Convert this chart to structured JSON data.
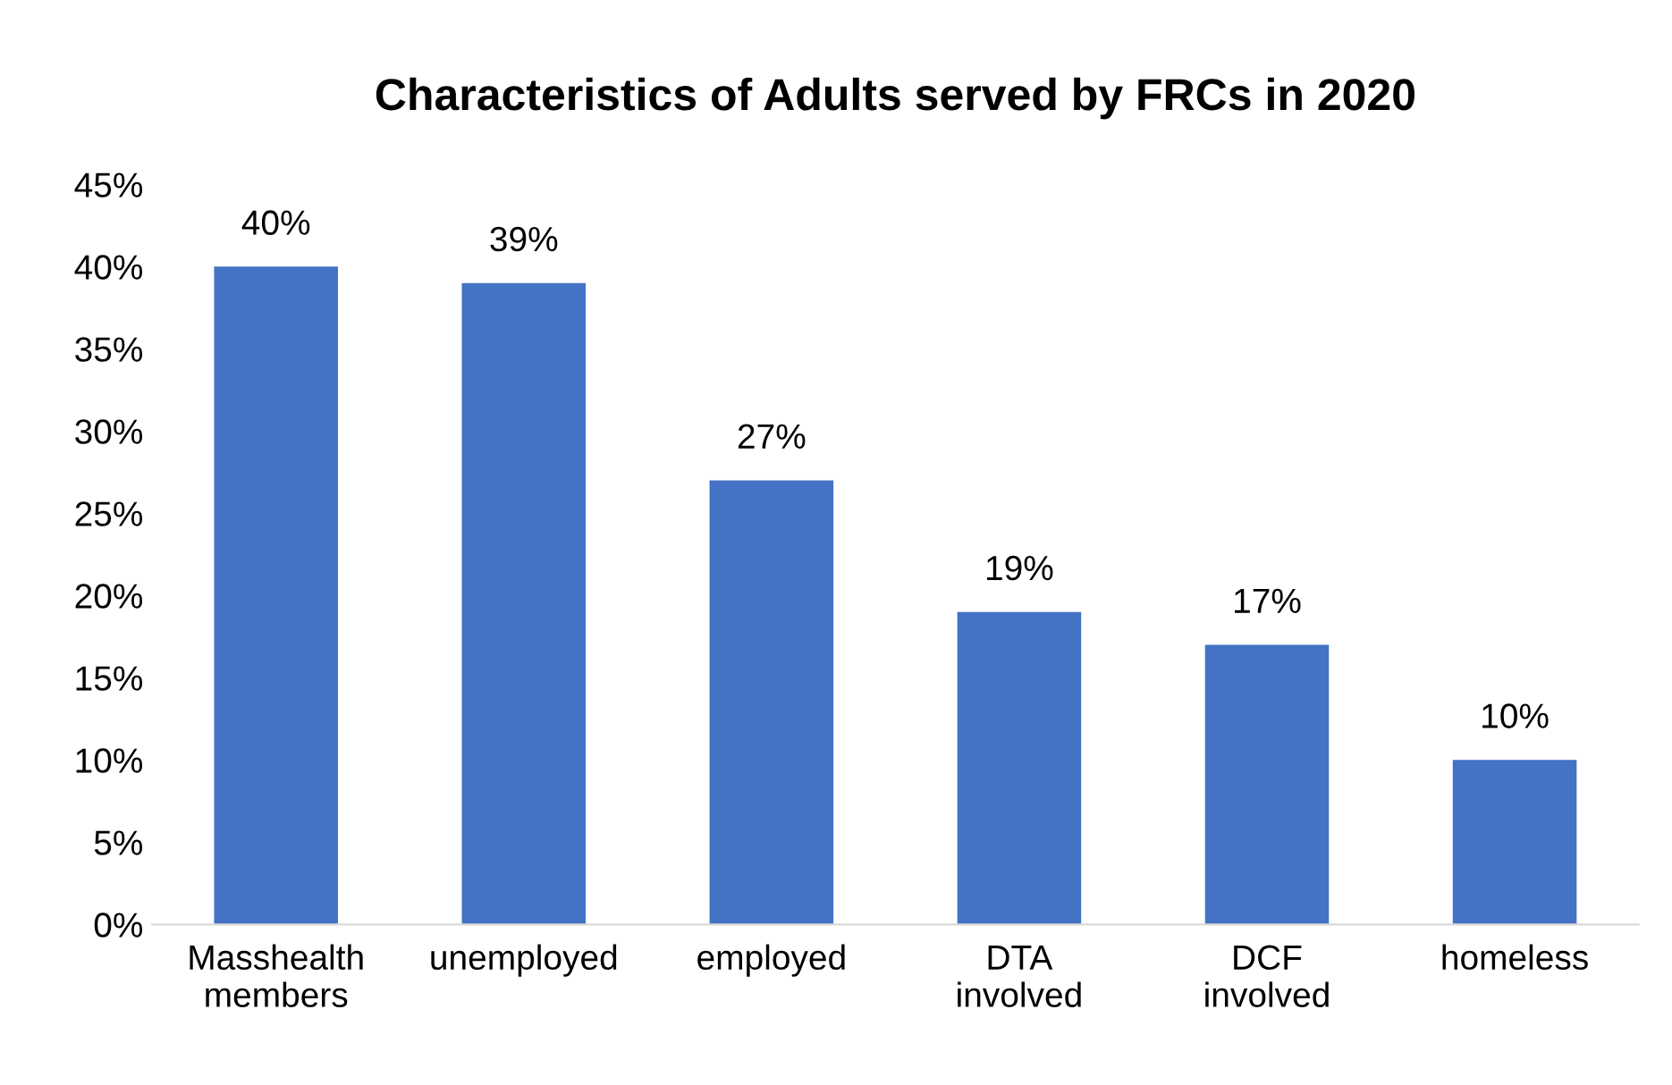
{
  "chart_data": {
    "type": "bar",
    "title": "Characteristics of Adults served by FRCs in 2020",
    "categories": [
      "Masshealth\nmembers",
      "unemployed",
      "employed",
      "DTA\ninvolved",
      "DCF\ninvolved",
      "homeless"
    ],
    "values": [
      40,
      39,
      27,
      19,
      17,
      10
    ],
    "value_labels": [
      "40%",
      "39%",
      "27%",
      "19%",
      "17%",
      "10%"
    ],
    "color": "#4472c4",
    "ylim": [
      0,
      45
    ],
    "yticks": [
      {
        "value": 0,
        "label": "0%"
      },
      {
        "value": 5,
        "label": "5%"
      },
      {
        "value": 10,
        "label": "10%"
      },
      {
        "value": 15,
        "label": "15%"
      },
      {
        "value": 20,
        "label": "20%"
      },
      {
        "value": 25,
        "label": "25%"
      },
      {
        "value": 30,
        "label": "30%"
      },
      {
        "value": 35,
        "label": "35%"
      },
      {
        "value": 40,
        "label": "40%"
      },
      {
        "value": 45,
        "label": "45%"
      }
    ],
    "grid": false
  }
}
